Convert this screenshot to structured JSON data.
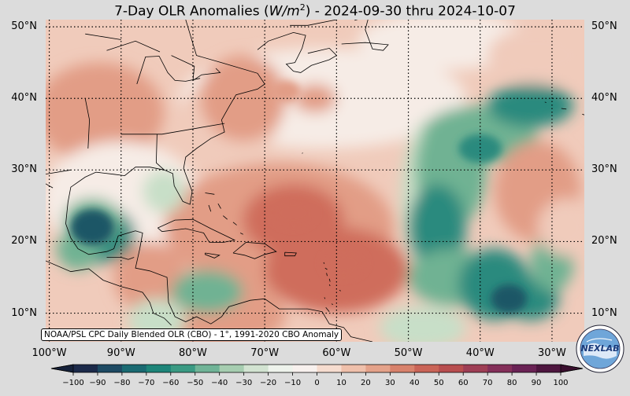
{
  "title_prefix": "7-Day OLR Anomalies (",
  "title_unit_base": "W/m",
  "title_unit_exp": "2",
  "title_suffix": ") - 2024-09-30 thru 2024-10-07",
  "credit": "NOAA/PSL CPC Daily Blended OLR (CBO) - 1°, 1991-2020 CBO Anomaly",
  "logo_text": "NEXLAB",
  "lat_labels": [
    "50°N",
    "40°N",
    "30°N",
    "20°N",
    "10°N"
  ],
  "lat_values": [
    50,
    40,
    30,
    20,
    10
  ],
  "lon_labels": [
    "100°W",
    "90°W",
    "80°W",
    "70°W",
    "60°W",
    "50°W",
    "40°W",
    "30°W"
  ],
  "lon_values": [
    -100,
    -90,
    -80,
    -70,
    -60,
    -50,
    -40,
    -30
  ],
  "extent": {
    "lon_min": -100.5,
    "lon_max": -25.5,
    "lat_min": 6,
    "lat_max": 51
  },
  "colorbar": {
    "ticks": [
      "−100",
      "−90",
      "−80",
      "−70",
      "−60",
      "−50",
      "−40",
      "−30",
      "−20",
      "−10",
      "0",
      "10",
      "20",
      "30",
      "40",
      "50",
      "60",
      "70",
      "80",
      "90",
      "100"
    ],
    "min": -100,
    "max": 100,
    "colors": [
      "#1c2a4a",
      "#1d4a63",
      "#1a6a72",
      "#1d8579",
      "#3a9a83",
      "#70b497",
      "#a6cdb0",
      "#d2e3d1",
      "#eef3ec",
      "#f8f1ee",
      "#f6dccf",
      "#efc0ab",
      "#e4a28a",
      "#d8826c",
      "#ca6457",
      "#b84e4f",
      "#9e3e55",
      "#842f59",
      "#6a2255",
      "#4e163f"
    ]
  },
  "field_colors": {
    "strong_neg": "#1d5766",
    "neg": "#2a8a7e",
    "mild_neg": "#6fb293",
    "weak_neg": "#c8dfc8",
    "neutral": "#f6ece6",
    "weak_pos": "#f0cbbb",
    "pos": "#e29d86",
    "strong_pos": "#cf6d5c"
  }
}
